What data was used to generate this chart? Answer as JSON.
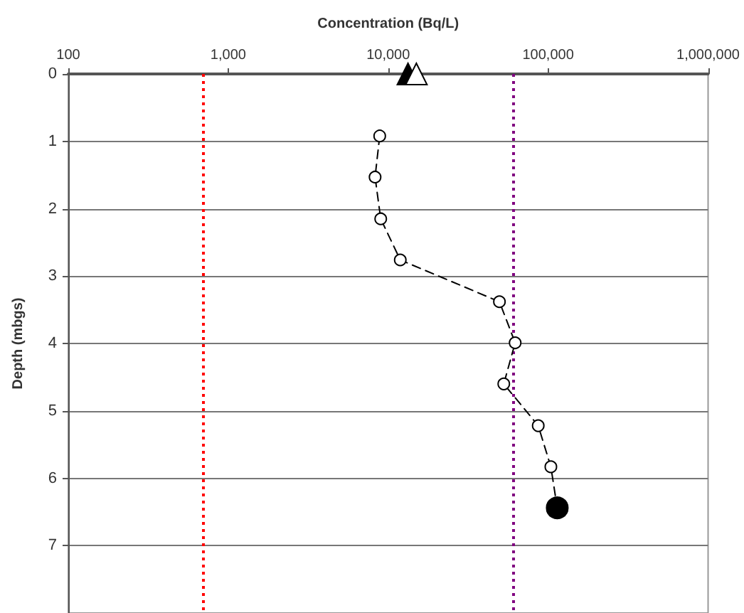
{
  "chart_data": {
    "type": "line",
    "xlabel": "Concentration (Bq/L)",
    "ylabel": "Depth (mbgs)",
    "log": "x",
    "grid": "y",
    "line_style": "dashed",
    "xlim": [
      100,
      1000000
    ],
    "xticks": [
      100,
      {
        "value": 1000,
        "label": "1,000"
      },
      {
        "value": 10000,
        "label": "10,000"
      },
      {
        "value": 100000,
        "label": "100,000"
      },
      {
        "value": 1000000,
        "label": "1,000,000"
      }
    ],
    "ylim": [
      8,
      0
    ],
    "yticks": [
      0,
      1,
      2,
      3,
      4,
      5,
      6,
      7
    ],
    "series": [
      {
        "marker": "circle",
        "color": "#000000",
        "x": [
          8850,
          8280,
          8980,
          11900,
          49600,
          62200,
          52800,
          86700,
          104000,
          114000
        ],
        "values": [
          0.92,
          1.53,
          2.15,
          2.76,
          3.38,
          3.99,
          4.6,
          5.22,
          5.83,
          6.44
        ]
      },
      {
        "type": "scatter",
        "marker": "circle",
        "color": "#000000",
        "x": [
          114000
        ],
        "values": [
          6.44
        ]
      },
      {
        "type": "scatter",
        "marker": "triangle",
        "color": "#000000",
        "x": [
          13300
        ],
        "values": [
          0
        ]
      },
      {
        "type": "scatter",
        "marker": "triangle",
        "color": "#ffffff",
        "x": [
          15000
        ],
        "values": [
          0
        ]
      }
    ],
    "ref_lines": [
      {
        "axis": "x",
        "value": 700,
        "color": "#ff0000",
        "line_style": "dotted"
      },
      {
        "axis": "x",
        "value": 60000,
        "color": "#800080",
        "line_style": "dotted"
      }
    ]
  }
}
